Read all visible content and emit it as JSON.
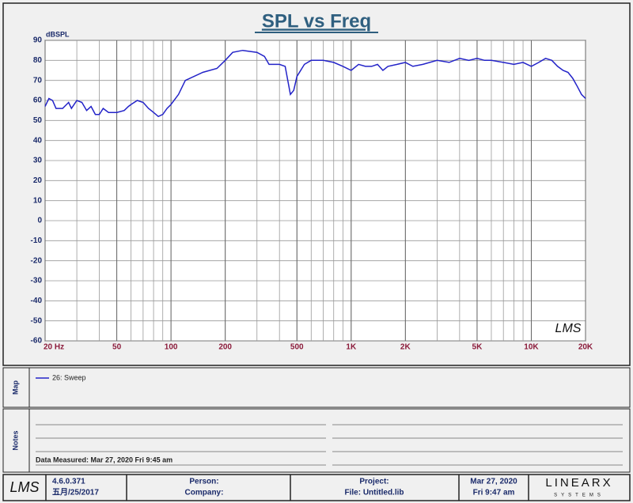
{
  "chart_data": {
    "type": "line",
    "title": "SPL vs Freq",
    "y_label": "dBSPL",
    "watermark": "LMS",
    "x_scale": "log",
    "grid": true,
    "xlim": [
      20,
      20000
    ],
    "ylim": [
      -60,
      90
    ],
    "xticks": [
      {
        "value": 20,
        "label": "20  Hz"
      },
      50,
      100,
      200,
      500,
      {
        "value": 1000,
        "label": "1K"
      },
      {
        "value": 2000,
        "label": "2K"
      },
      {
        "value": 5000,
        "label": "5K"
      },
      {
        "value": 10000,
        "label": "10K"
      },
      {
        "value": 20000,
        "label": "20K"
      }
    ],
    "yticks": [
      90,
      80,
      70,
      60,
      50,
      40,
      30,
      20,
      10,
      0,
      -10,
      -20,
      -30,
      -40,
      -50,
      -60
    ],
    "x": [
      20,
      21,
      22,
      23,
      25,
      27,
      28,
      30,
      32,
      34,
      36,
      38,
      40,
      42,
      45,
      50,
      55,
      58,
      60,
      65,
      70,
      75,
      80,
      85,
      90,
      95,
      100,
      110,
      120,
      150,
      180,
      200,
      220,
      250,
      300,
      330,
      350,
      400,
      430,
      460,
      480,
      500,
      550,
      600,
      700,
      800,
      900,
      1000,
      1100,
      1200,
      1300,
      1400,
      1500,
      1600,
      1800,
      2000,
      2200,
      2500,
      3000,
      3500,
      4000,
      4500,
      5000,
      5500,
      6000,
      7000,
      8000,
      9000,
      10000,
      11000,
      12000,
      13000,
      14000,
      15000,
      16000,
      17000,
      18000,
      19000,
      20000
    ],
    "series": [
      {
        "name": "26: Sweep",
        "color": "#2323c8",
        "values": [
          57,
          61,
          60,
          56,
          56,
          59,
          56,
          60,
          59,
          55,
          57,
          53,
          53,
          56,
          54,
          54,
          55,
          57,
          58,
          60,
          59,
          56,
          54,
          52,
          53,
          56,
          58,
          63,
          70,
          74,
          76,
          80,
          84,
          85,
          84,
          82,
          78,
          78,
          77,
          63,
          65,
          72,
          78,
          80,
          80,
          79,
          77,
          75,
          78,
          77,
          77,
          78,
          75,
          77,
          78,
          79,
          77,
          78,
          80,
          79,
          81,
          80,
          81,
          80,
          80,
          79,
          78,
          79,
          77,
          79,
          81,
          80,
          77,
          75,
          74,
          71,
          67,
          63,
          61
        ]
      }
    ]
  },
  "map_label": "Map",
  "notes_label": "Notes",
  "notes_text": "Data Measured: Mar 27, 2020  Fri  9:45 am",
  "footer": {
    "logo": "LMS",
    "version": "4.6.0.371",
    "build_date": "五月/25/2017",
    "person": "Person:",
    "company": "Company:",
    "project": "Project:",
    "file": "File: Untitled.lib",
    "date": "Mar 27, 2020",
    "time": "Fri  9:47 am",
    "brand": "LINEARX",
    "brand_sub": "SYSTEMS"
  }
}
